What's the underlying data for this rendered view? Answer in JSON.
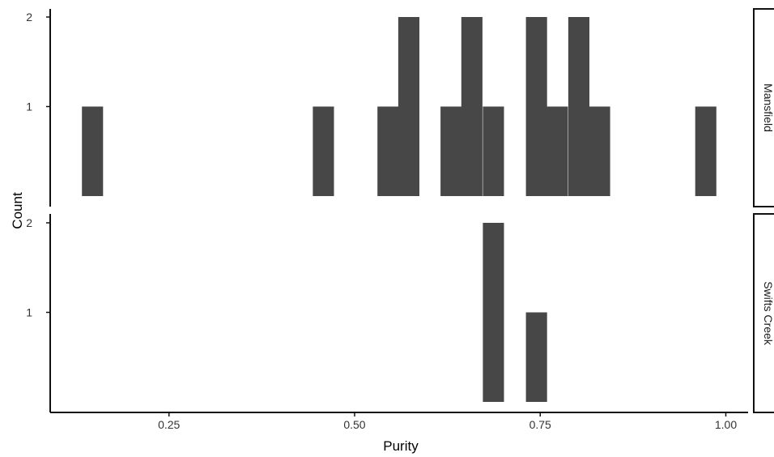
{
  "chart_data": {
    "type": "bar",
    "subtype": "histogram-facet",
    "xlabel": "Purity",
    "ylabel": "Count",
    "xlim": [
      0.09,
      1.03
    ],
    "xticks": [
      0.25,
      0.5,
      0.75,
      1.0
    ],
    "xtick_labels": [
      "0.25",
      "0.50",
      "0.75",
      "1.00"
    ],
    "yticks": [
      1,
      2
    ],
    "ytick_labels": [
      "1",
      "2"
    ],
    "ylim": [
      0,
      2.1
    ],
    "bin_width": 0.0285,
    "bar_color": "#474747",
    "grid": false,
    "facet_layout": "rows",
    "strip_position": "right",
    "panels": [
      {
        "label": "Mansfield",
        "bins": [
          {
            "x": 0.147,
            "count": 1
          },
          {
            "x": 0.458,
            "count": 1
          },
          {
            "x": 0.545,
            "count": 1
          },
          {
            "x": 0.573,
            "count": 2
          },
          {
            "x": 0.63,
            "count": 1
          },
          {
            "x": 0.658,
            "count": 2
          },
          {
            "x": 0.687,
            "count": 1
          },
          {
            "x": 0.745,
            "count": 2
          },
          {
            "x": 0.773,
            "count": 1
          },
          {
            "x": 0.802,
            "count": 2
          },
          {
            "x": 0.83,
            "count": 1
          },
          {
            "x": 0.973,
            "count": 1
          }
        ]
      },
      {
        "label": "Swifts Creek",
        "bins": [
          {
            "x": 0.687,
            "count": 2
          },
          {
            "x": 0.745,
            "count": 1
          }
        ]
      }
    ]
  }
}
